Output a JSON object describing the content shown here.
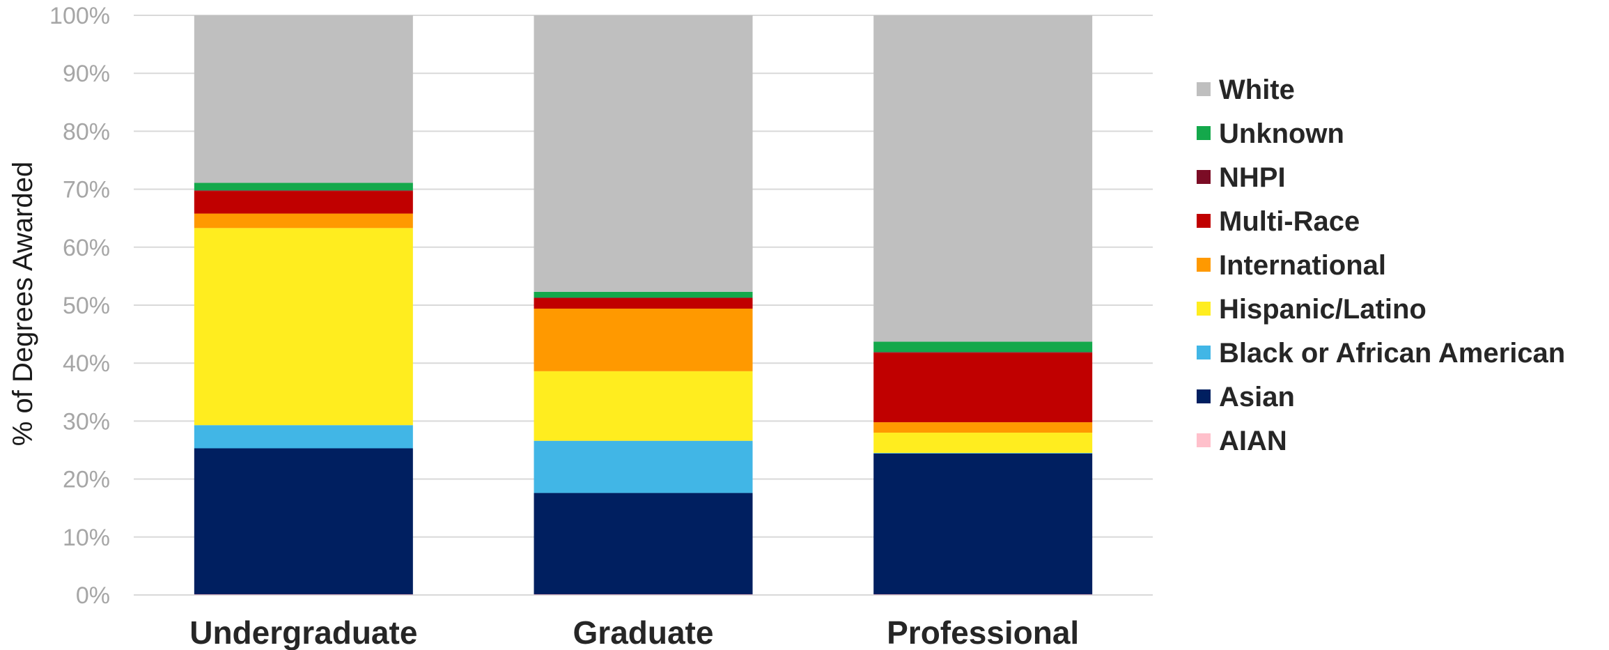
{
  "chart_data": {
    "type": "bar",
    "stacked": true,
    "percent": true,
    "title": "",
    "xlabel": "",
    "ylabel": "% of Degrees Awarded",
    "ylim": [
      0,
      100
    ],
    "yticks": [
      "0%",
      "10%",
      "20%",
      "30%",
      "40%",
      "50%",
      "60%",
      "70%",
      "80%",
      "90%",
      "100%"
    ],
    "categories": [
      "Undergraduate",
      "Graduate",
      "Professional"
    ],
    "grid": true,
    "legend_position": "right",
    "series": [
      {
        "name": "AIAN",
        "color": "#ffc0cb",
        "values": [
          0.1,
          0.1,
          0.1
        ]
      },
      {
        "name": "Asian",
        "color": "#001f60",
        "values": [
          25.2,
          17.5,
          24.3
        ]
      },
      {
        "name": "Black or African American",
        "color": "#41b6e6",
        "values": [
          4.0,
          9.0,
          0.1
        ]
      },
      {
        "name": "Hispanic/Latino",
        "color": "#ffed1f",
        "values": [
          34.0,
          12.0,
          3.5
        ]
      },
      {
        "name": "International",
        "color": "#ff9900",
        "values": [
          2.5,
          10.8,
          1.8
        ]
      },
      {
        "name": "Multi-Race",
        "color": "#c00000",
        "values": [
          3.9,
          1.8,
          12.0
        ]
      },
      {
        "name": "NHPI",
        "color": "#7b0c25",
        "values": [
          0.1,
          0.1,
          0.1
        ]
      },
      {
        "name": "Unknown",
        "color": "#14a84b",
        "values": [
          1.3,
          1.0,
          1.8
        ]
      },
      {
        "name": "White",
        "color": "#bfbfbf",
        "values": [
          28.9,
          47.7,
          56.3
        ]
      }
    ]
  }
}
